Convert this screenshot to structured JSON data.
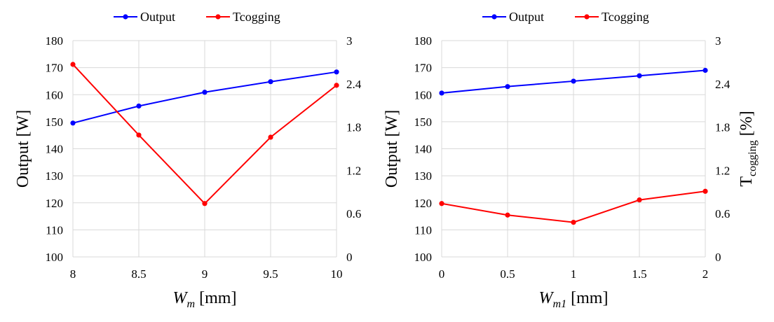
{
  "chart_data": [
    {
      "type": "line",
      "x": [
        8,
        8.5,
        9,
        9.5,
        10
      ],
      "x_tick_labels": [
        "8",
        "8.5",
        "9",
        "9.5",
        "10"
      ],
      "xlabel_main": "W",
      "xlabel_sub": "m",
      "xlabel_unit": " [mm]",
      "ylabel": "Output [W]",
      "ylim": [
        100,
        180
      ],
      "y_ticks": [
        "100",
        "110",
        "120",
        "130",
        "140",
        "150",
        "160",
        "170",
        "180"
      ],
      "y2lim": [
        0,
        3
      ],
      "y2_ticks": [
        "0",
        "0.6",
        "1.2",
        "1.8",
        "2.4",
        "3"
      ],
      "legend_position": "top-center",
      "grid": true,
      "series": [
        {
          "name": "Output",
          "axis": "left",
          "color": "#0000FF",
          "values": [
            149.5,
            155.8,
            160.9,
            164.8,
            168.4
          ]
        },
        {
          "name": "Tcogging",
          "axis": "right",
          "color": "#FF0000",
          "values": [
            2.67,
            1.69,
            0.74,
            1.66,
            2.38
          ]
        }
      ]
    },
    {
      "type": "line",
      "x": [
        0,
        0.5,
        1,
        1.5,
        2
      ],
      "x_tick_labels": [
        "0",
        "0.5",
        "1",
        "1.5",
        "2"
      ],
      "xlabel_main": "W",
      "xlabel_sub": "m1",
      "xlabel_unit": " [mm]",
      "ylabel": "Output [W]",
      "ylim": [
        100,
        180
      ],
      "y_ticks": [
        "100",
        "110",
        "120",
        "130",
        "140",
        "150",
        "160",
        "170",
        "180"
      ],
      "y2label_main": "T",
      "y2label_sub": "cogging",
      "y2label_unit": " [%]",
      "y2lim": [
        0,
        3
      ],
      "y2_ticks": [
        "0",
        "0.6",
        "1.2",
        "1.8",
        "2.4",
        "3"
      ],
      "legend_position": "top-center",
      "grid": true,
      "series": [
        {
          "name": "Output",
          "axis": "left",
          "color": "#0000FF",
          "values": [
            160.6,
            163.0,
            165.0,
            167.0,
            169.0
          ]
        },
        {
          "name": "Tcogging",
          "axis": "right",
          "color": "#FF0000",
          "values": [
            0.74,
            0.58,
            0.48,
            0.79,
            0.91
          ]
        }
      ]
    }
  ]
}
